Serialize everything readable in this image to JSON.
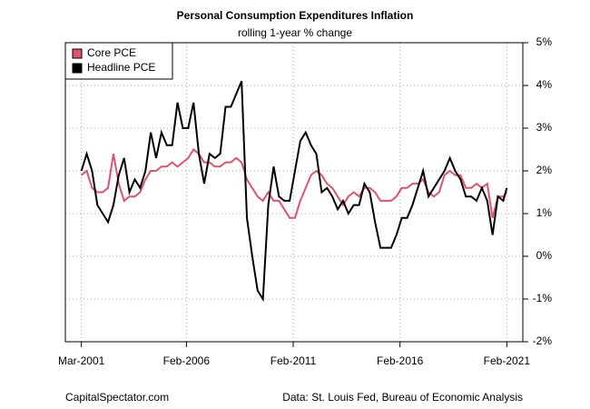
{
  "chart_data": {
    "type": "line",
    "title": "Personal Consumption Expenditures Inflation",
    "subtitle": "rolling 1-year % change",
    "source_left": "CapitalSpectator.com",
    "source_right": "Data: St. Louis Fed, Bureau of Economic Analysis",
    "x": [
      "2001-03",
      "2001-06",
      "2001-09",
      "2001-12",
      "2002-03",
      "2002-06",
      "2002-09",
      "2002-12",
      "2003-03",
      "2003-06",
      "2003-09",
      "2003-12",
      "2004-03",
      "2004-06",
      "2004-09",
      "2004-12",
      "2005-03",
      "2005-06",
      "2005-09",
      "2005-12",
      "2006-03",
      "2006-06",
      "2006-09",
      "2006-12",
      "2007-03",
      "2007-06",
      "2007-09",
      "2007-12",
      "2008-03",
      "2008-06",
      "2008-09",
      "2008-12",
      "2009-03",
      "2009-06",
      "2009-09",
      "2009-12",
      "2010-03",
      "2010-06",
      "2010-09",
      "2010-12",
      "2011-03",
      "2011-06",
      "2011-09",
      "2011-12",
      "2012-03",
      "2012-06",
      "2012-09",
      "2012-12",
      "2013-03",
      "2013-06",
      "2013-09",
      "2013-12",
      "2014-03",
      "2014-06",
      "2014-09",
      "2014-12",
      "2015-03",
      "2015-06",
      "2015-09",
      "2015-12",
      "2016-03",
      "2016-06",
      "2016-09",
      "2016-12",
      "2017-03",
      "2017-06",
      "2017-09",
      "2017-12",
      "2018-03",
      "2018-06",
      "2018-09",
      "2018-12",
      "2019-03",
      "2019-06",
      "2019-09",
      "2019-12",
      "2020-03",
      "2020-06",
      "2020-09",
      "2020-12",
      "2021-02"
    ],
    "series": [
      {
        "name": "Core PCE",
        "color": "#df536b",
        "values": [
          1.9,
          2.0,
          1.6,
          1.5,
          1.5,
          1.6,
          2.4,
          1.7,
          1.3,
          1.4,
          1.4,
          1.5,
          1.8,
          2.0,
          2.0,
          2.1,
          2.1,
          2.2,
          2.1,
          2.2,
          2.3,
          2.5,
          2.4,
          2.2,
          2.2,
          2.1,
          2.1,
          2.2,
          2.2,
          2.3,
          2.2,
          1.8,
          1.6,
          1.4,
          1.3,
          1.5,
          1.3,
          1.3,
          1.1,
          0.9,
          0.9,
          1.3,
          1.6,
          1.9,
          2.0,
          1.9,
          1.7,
          1.6,
          1.4,
          1.2,
          1.4,
          1.5,
          1.4,
          1.6,
          1.6,
          1.5,
          1.3,
          1.3,
          1.3,
          1.4,
          1.6,
          1.6,
          1.7,
          1.7,
          1.8,
          1.5,
          1.4,
          1.5,
          1.9,
          2.0,
          1.9,
          1.9,
          1.6,
          1.6,
          1.7,
          1.6,
          1.7,
          0.9,
          1.4,
          1.4,
          1.5
        ]
      },
      {
        "name": "Headline PCE",
        "color": "#000000",
        "values": [
          2.0,
          2.4,
          2.0,
          1.2,
          1.0,
          0.8,
          1.2,
          1.9,
          2.3,
          1.5,
          1.8,
          1.6,
          2.0,
          2.9,
          2.3,
          2.9,
          2.6,
          2.6,
          3.6,
          3.0,
          3.0,
          3.6,
          2.4,
          1.7,
          2.4,
          2.3,
          2.4,
          3.5,
          3.5,
          3.8,
          4.1,
          0.9,
          0.0,
          -0.8,
          -1.0,
          1.2,
          2.1,
          1.4,
          1.3,
          1.3,
          2.0,
          2.7,
          2.9,
          2.6,
          2.4,
          1.5,
          1.6,
          1.4,
          1.1,
          1.3,
          1.0,
          1.2,
          1.2,
          1.7,
          1.5,
          0.8,
          0.2,
          0.2,
          0.2,
          0.5,
          0.9,
          0.9,
          1.2,
          1.6,
          2.0,
          1.4,
          1.6,
          1.8,
          2.0,
          2.3,
          2.0,
          1.8,
          1.4,
          1.4,
          1.3,
          1.6,
          1.3,
          0.5,
          1.4,
          1.3,
          1.6
        ]
      }
    ],
    "xlim": [
      "2000-06",
      "2021-11"
    ],
    "xticks": [
      {
        "value": "2001-03",
        "label": "Mar-2001"
      },
      {
        "value": "2006-02",
        "label": "Feb-2006"
      },
      {
        "value": "2011-02",
        "label": "Feb-2011"
      },
      {
        "value": "2016-02",
        "label": "Feb-2016"
      },
      {
        "value": "2021-02",
        "label": "Feb-2021"
      }
    ],
    "ylim": [
      -2,
      5
    ],
    "yticks": [
      {
        "value": -2,
        "label": "-2%"
      },
      {
        "value": -1,
        "label": "-1%"
      },
      {
        "value": 0,
        "label": "0%"
      },
      {
        "value": 1,
        "label": "1%"
      },
      {
        "value": 2,
        "label": "2%"
      },
      {
        "value": 3,
        "label": "3%"
      },
      {
        "value": 4,
        "label": "4%"
      },
      {
        "value": 5,
        "label": "5%"
      }
    ],
    "grid": true,
    "legend": "top-left"
  }
}
